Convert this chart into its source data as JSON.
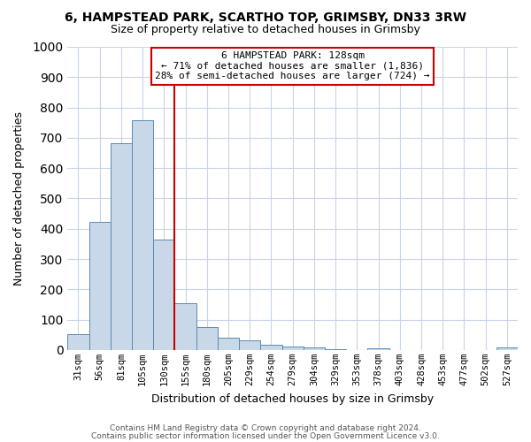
{
  "title": "6, HAMPSTEAD PARK, SCARTHO TOP, GRIMSBY, DN33 3RW",
  "subtitle": "Size of property relative to detached houses in Grimsby",
  "xlabel": "Distribution of detached houses by size in Grimsby",
  "ylabel": "Number of detached properties",
  "footer_line1": "Contains HM Land Registry data © Crown copyright and database right 2024.",
  "footer_line2": "Contains public sector information licensed under the Open Government Licence v3.0.",
  "bar_labels": [
    "31sqm",
    "56sqm",
    "81sqm",
    "105sqm",
    "130sqm",
    "155sqm",
    "180sqm",
    "205sqm",
    "229sqm",
    "254sqm",
    "279sqm",
    "304sqm",
    "329sqm",
    "353sqm",
    "378sqm",
    "403sqm",
    "428sqm",
    "453sqm",
    "477sqm",
    "502sqm",
    "527sqm"
  ],
  "bar_values": [
    52,
    422,
    682,
    757,
    363,
    153,
    75,
    40,
    32,
    18,
    12,
    8,
    3,
    0,
    5,
    0,
    0,
    0,
    0,
    0,
    8
  ],
  "bar_color": "#c8d8e8",
  "bar_edge_color": "#5a8ab0",
  "ylim": [
    0,
    1000
  ],
  "yticks": [
    0,
    100,
    200,
    300,
    400,
    500,
    600,
    700,
    800,
    900,
    1000
  ],
  "vline_color": "#cc0000",
  "annotation_line1": "6 HAMPSTEAD PARK: 128sqm",
  "annotation_line2": "← 71% of detached houses are smaller (1,836)",
  "annotation_line3": "28% of semi-detached houses are larger (724) →",
  "annotation_box_color": "#cc0000",
  "annotation_box_fill": "#ffffff",
  "background_color": "#ffffff",
  "grid_color": "#c8d4e8"
}
